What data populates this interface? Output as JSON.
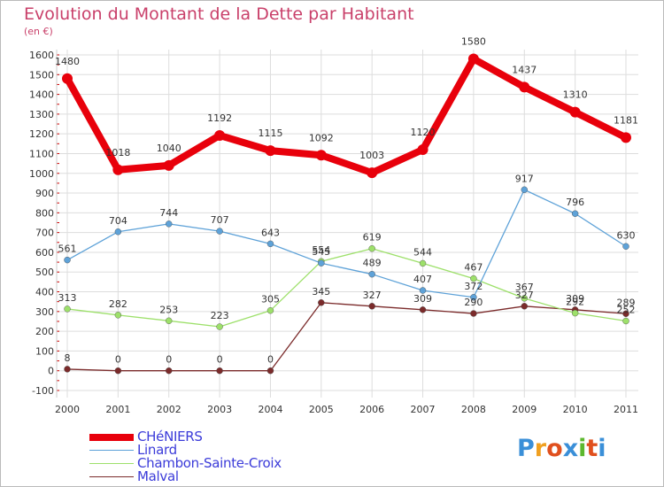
{
  "title": "Evolution du Montant de la Dette par Habitant",
  "unit": "(en €)",
  "brand": "Proxiti",
  "brand_colors": [
    "#3a8fd8",
    "#f0a020",
    "#e0501e",
    "#3a8fd8",
    "#5cb82e",
    "#e0501e",
    "#3a8fd8"
  ],
  "colors": {
    "title": "#c9406a",
    "legend_text": "#3b3bd9",
    "grid": "#dddddd",
    "axis_tick_red": "#cc0000"
  },
  "chart_data": {
    "type": "line",
    "title": "Evolution du Montant de la Dette par Habitant",
    "ylabel": "(en €)",
    "xlabel": "",
    "ylim": [
      -100,
      1600
    ],
    "yticks": [
      -100,
      0,
      100,
      200,
      300,
      400,
      500,
      600,
      700,
      800,
      900,
      1000,
      1100,
      1200,
      1300,
      1400,
      1500,
      1600
    ],
    "grid": true,
    "legend_position": "bottom-left",
    "categories": [
      "2000",
      "2001",
      "2002",
      "2003",
      "2004",
      "2005",
      "2006",
      "2007",
      "2008",
      "2009",
      "2010",
      "2011"
    ],
    "series": [
      {
        "name": "CHéNIERS",
        "color": "#e8000b",
        "width": 8,
        "marker": 6,
        "values": [
          1480,
          1018,
          1040,
          1192,
          1115,
          1092,
          1003,
          1120,
          1580,
          1437,
          1310,
          1181
        ],
        "labels": [
          "1480",
          "1018",
          "1040",
          "1192",
          "1115",
          "1092",
          "1003",
          "1120",
          "1580",
          "1437",
          "1310",
          "1181"
        ]
      },
      {
        "name": "Linard",
        "color": "#5ea2d8",
        "width": 1.3,
        "marker": 3.5,
        "values": [
          561,
          704,
          744,
          707,
          643,
          545,
          489,
          407,
          372,
          917,
          796,
          630
        ],
        "labels": [
          "561",
          "704",
          "744",
          "707",
          "643",
          "545",
          "489",
          "407",
          "372",
          "917",
          "796",
          "630"
        ]
      },
      {
        "name": "Chambon-Sainte-Croix",
        "color": "#9de06a",
        "width": 1.3,
        "marker": 3.5,
        "values": [
          313,
          282,
          253,
          223,
          305,
          554,
          619,
          544,
          467,
          367,
          292,
          252
        ],
        "labels": [
          "313",
          "282",
          "253",
          "223",
          "305",
          "554",
          "619",
          "544",
          "467",
          "367",
          "292",
          "252"
        ]
      },
      {
        "name": "Malval",
        "color": "#7b2b2b",
        "width": 1.3,
        "marker": 3.5,
        "values": [
          8,
          0,
          0,
          0,
          0,
          345,
          327,
          309,
          290,
          327,
          309,
          289
        ],
        "labels": [
          "8",
          "0",
          "0",
          "0",
          "0",
          "345",
          "327",
          "309",
          "290",
          "327",
          "309",
          "289"
        ]
      }
    ]
  }
}
